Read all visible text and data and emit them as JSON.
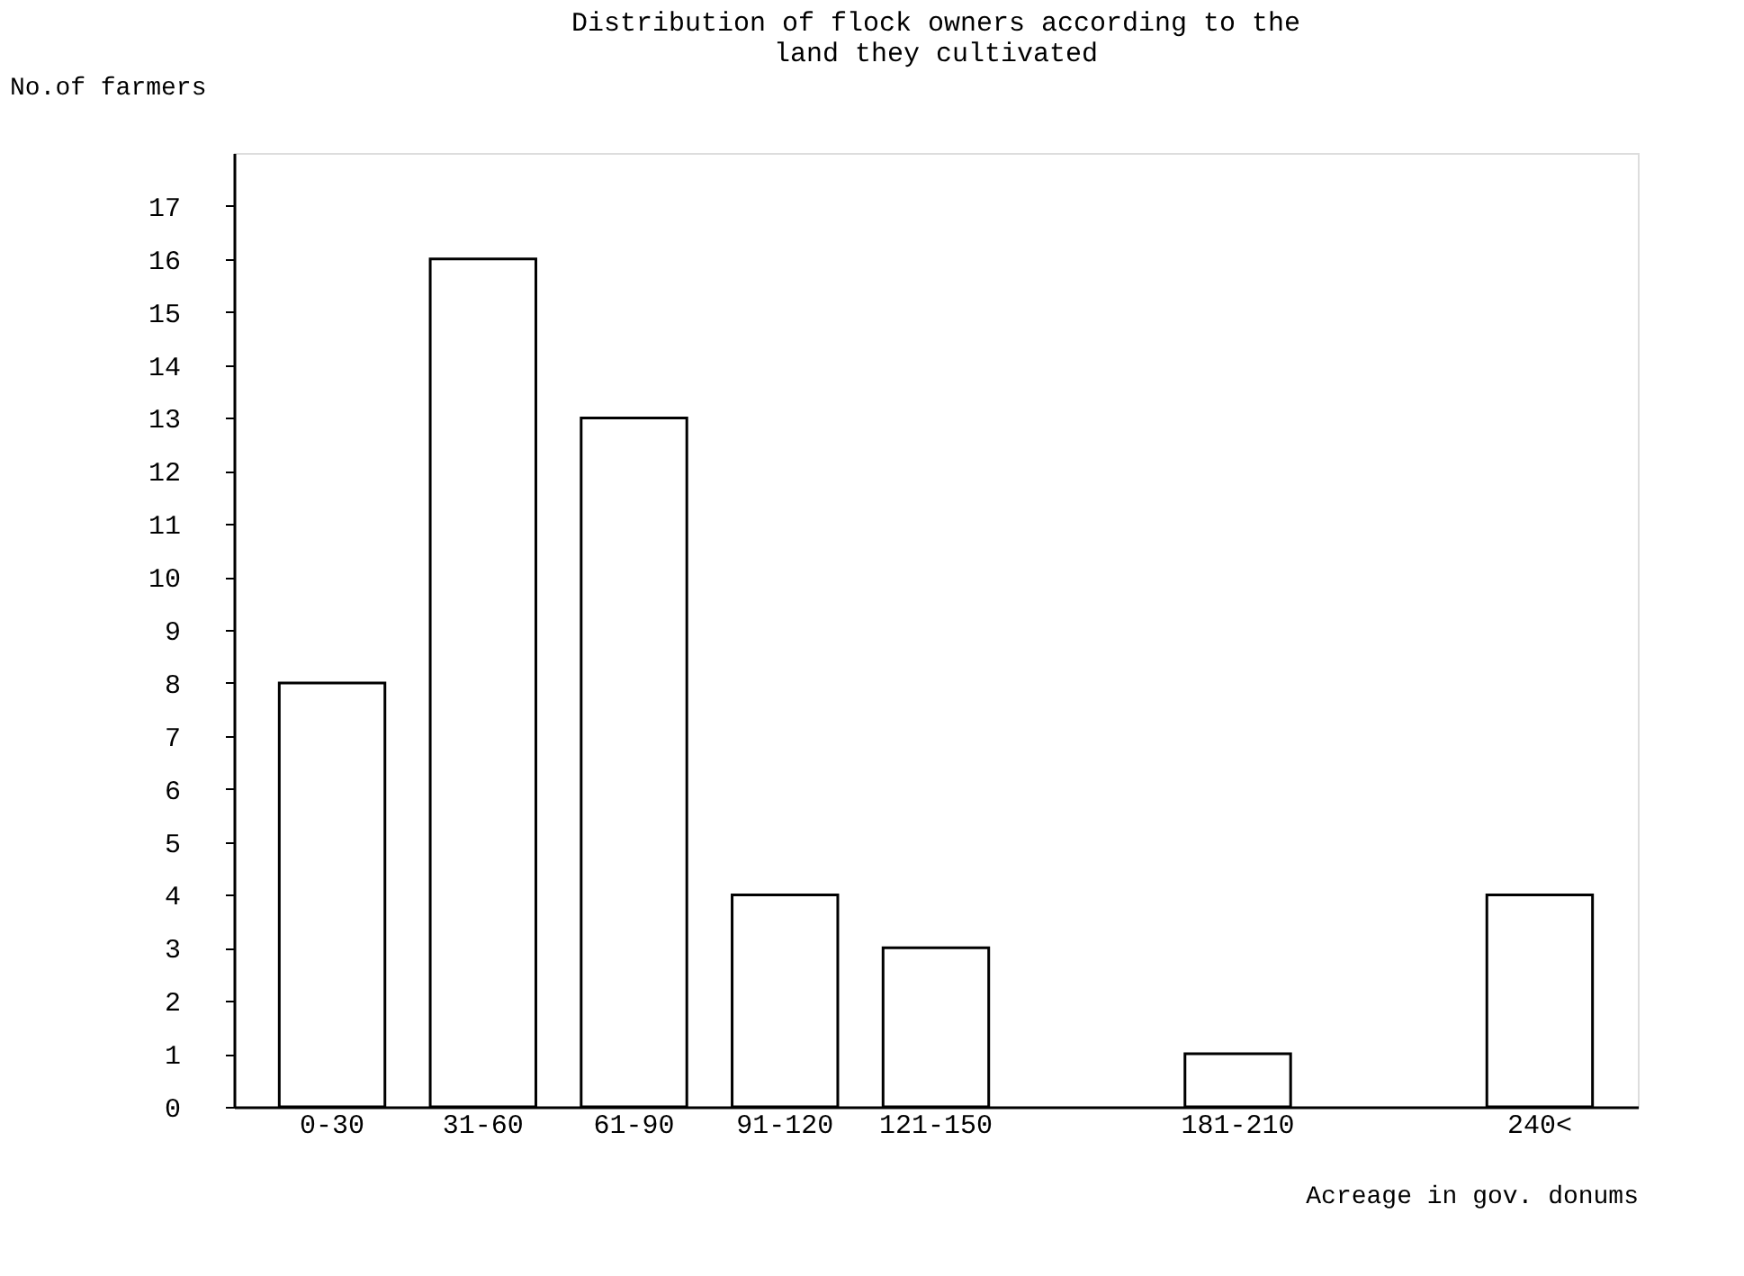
{
  "chart_data": {
    "type": "bar",
    "title": "Distribution of flock owners according to the land they cultivated",
    "xlabel": "Acreage in gov. donums",
    "ylabel": "No.of farmers",
    "categories": [
      "0-30",
      "31-60",
      "61-90",
      "91-120",
      "121-150",
      null,
      "181-210",
      null,
      "240<"
    ],
    "values": [
      8,
      16,
      13,
      4,
      3,
      null,
      1,
      null,
      4
    ],
    "color": "#ffffff",
    "ylim": [
      0,
      18
    ],
    "yticks": [
      0,
      1,
      2,
      3,
      4,
      5,
      6,
      7,
      8,
      9,
      10,
      11,
      12,
      13,
      14,
      15,
      16,
      17
    ],
    "grid": false
  }
}
